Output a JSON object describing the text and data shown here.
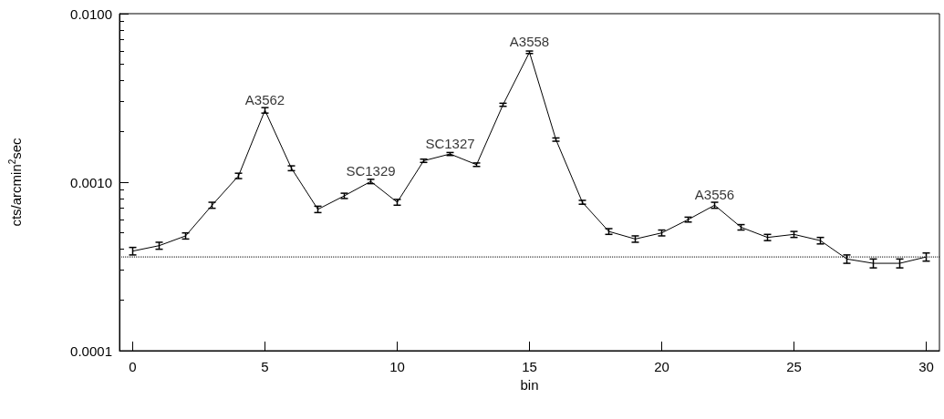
{
  "chart_data": {
    "type": "line",
    "xlabel": "bin",
    "ylabel": "cts/arcmin$^{2}$sec",
    "x": [
      0,
      1,
      2,
      3,
      4,
      5,
      6,
      7,
      8,
      9,
      10,
      11,
      12,
      13,
      14,
      15,
      16,
      17,
      18,
      19,
      20,
      21,
      22,
      23,
      24,
      25,
      26,
      27,
      28,
      29,
      30
    ],
    "series": [
      {
        "color": "#000000",
        "values": [
          0.00039,
          0.00042,
          0.00048,
          0.00073,
          0.00109,
          0.00267,
          0.00121,
          0.00069,
          0.00083,
          0.00101,
          0.00076,
          0.00134,
          0.00147,
          0.00127,
          0.00288,
          0.0059,
          0.00179,
          0.00076,
          0.00051,
          0.00046,
          0.0005,
          0.0006,
          0.00073,
          0.00054,
          0.00047,
          0.00049,
          0.00045,
          0.00035,
          0.00033,
          0.00033,
          0.00036
        ],
        "errors": [
          2e-05,
          2e-05,
          2e-05,
          3e-05,
          4e-05,
          0.0001,
          4e-05,
          3e-05,
          3e-05,
          3e-05,
          3e-05,
          3e-05,
          3e-05,
          3e-05,
          6e-05,
          0.0001,
          4e-05,
          2e-05,
          2e-05,
          2e-05,
          2e-05,
          2e-05,
          3e-05,
          2e-05,
          2e-05,
          2e-05,
          2e-05,
          2e-05,
          2e-05,
          2e-05,
          2e-05
        ]
      }
    ],
    "xlim": [
      -0.5,
      30.5
    ],
    "xticks": [
      0,
      5,
      10,
      15,
      20,
      25,
      30
    ],
    "log": "y",
    "ylim": [
      0.0001,
      0.01
    ],
    "yticks": [
      {
        "value": 0.0001,
        "label": "0.0001"
      },
      {
        "value": 0.001,
        "label": "0.0010"
      },
      {
        "value": 0.01,
        "label": "0.0100"
      }
    ],
    "ref_lines": [
      {
        "axis": "y",
        "value": 0.00036,
        "line_style": "dotted"
      }
    ],
    "annotations": [
      {
        "text": "A3562",
        "x": 5,
        "y": 0.00267
      },
      {
        "text": "SC1329",
        "x": 9,
        "y": 0.00101
      },
      {
        "text": "SC1327",
        "x": 12,
        "y": 0.00147
      },
      {
        "text": "A3558",
        "x": 15,
        "y": 0.0059
      },
      {
        "text": "A3556",
        "x": 22,
        "y": 0.00073
      }
    ],
    "grid": false,
    "marker": "none",
    "line_style": "solid"
  }
}
